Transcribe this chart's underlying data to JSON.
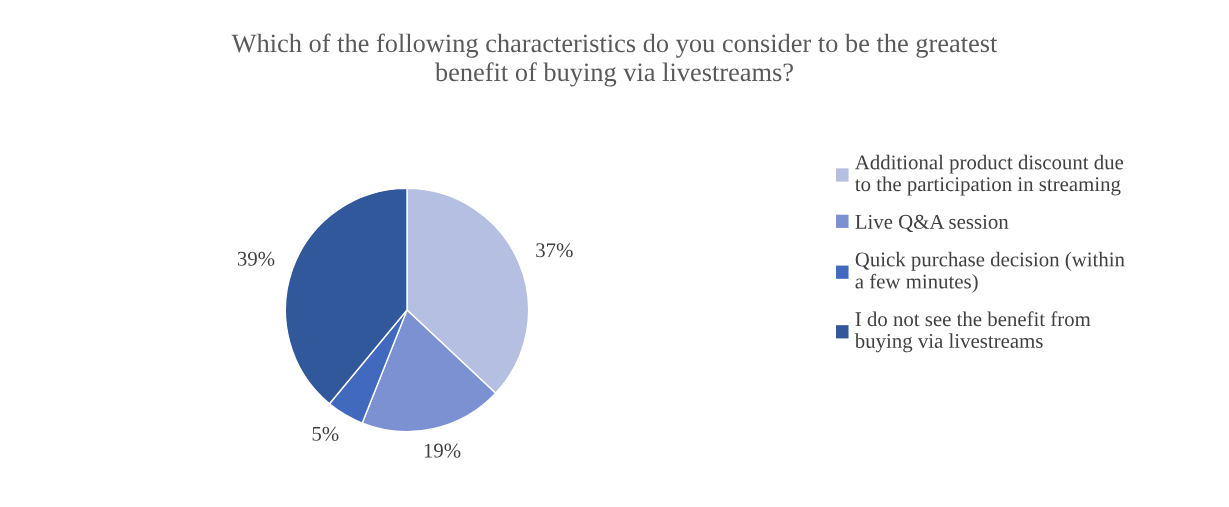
{
  "chart_data": {
    "type": "pie",
    "title": "Which of the following characteristics do you consider to be the greatest\nbenefit of buying via livestreams?",
    "categories": [
      "Additional product discount due\nto the participation in streaming",
      "Live Q&A session",
      "Quick purchase decision (within\na few minutes)",
      "I do not see the benefit from\nbuying via livestreams"
    ],
    "values": [
      37,
      19,
      5,
      39
    ],
    "colors": [
      "#b4bfe1",
      "#7b91d1",
      "#4169be",
      "#31589a"
    ],
    "value_labels": [
      "37%",
      "19%",
      "5%",
      "39%"
    ],
    "legend": "right"
  }
}
